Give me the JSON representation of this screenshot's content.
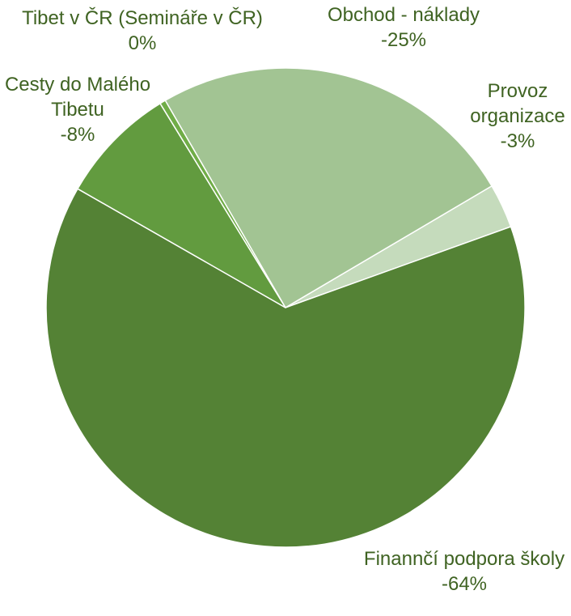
{
  "chart_data": {
    "type": "pie",
    "title": "",
    "start_angle_deg": -30.5,
    "direction": "clockwise",
    "slices": [
      {
        "label": "Provoz organizace",
        "label_lines": [
          "Provoz",
          "organizace"
        ],
        "value": 3,
        "value_label": "-3%",
        "color": "#c5dbbc"
      },
      {
        "label": "Finannčí podpora školy",
        "label_lines": [
          "Finannčí podpora školy"
        ],
        "value": 64,
        "value_label": "-64%",
        "color": "#548235"
      },
      {
        "label": "Cesty do Malého Tibetu",
        "label_lines": [
          "Cesty do Malého",
          "Tibetu"
        ],
        "value": 8,
        "value_label": "-8%",
        "color": "#629b3f"
      },
      {
        "label": "Tibet v ČR (Semináře v ČR)",
        "label_lines": [
          "Tibet v ČR (Semináře v ČR)"
        ],
        "value": 0.4,
        "value_label": "0%",
        "color": "#70ad47"
      },
      {
        "label": "Obchod - náklady",
        "label_lines": [
          "Obchod - náklady"
        ],
        "value": 25,
        "value_label": "-25%",
        "color": "#a2c493"
      }
    ]
  }
}
